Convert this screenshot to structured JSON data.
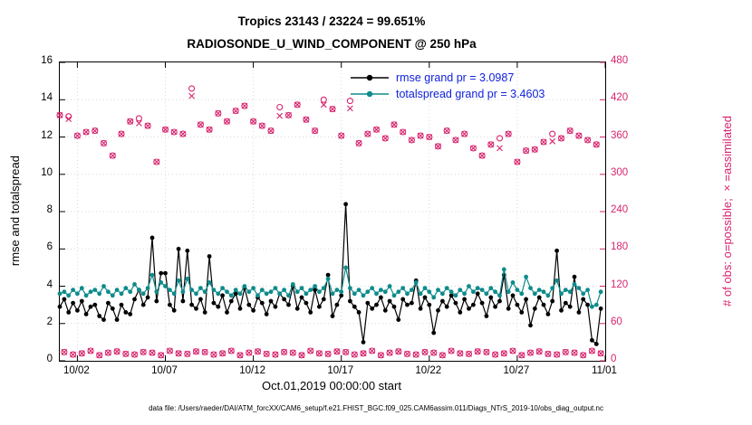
{
  "figure": {
    "title_line1": "Tropics 23143 / 23224 = 99.651%",
    "title_line2": "RADIOSONDE_U_WIND_COMPONENT @ 250 hPa",
    "xlabel": "Oct.01,2019 00:00:00 start",
    "ylabel_left": "rmse and totalspread",
    "ylabel_right": "# of obs: o=possible; ×=assimilated",
    "caption": "data file: /Users/raeder/DAI/ATM_forcXX/CAM6_setup/f.e21.FHIST_BGC.f09_025.CAM6assim.011/Diags_NTrS_2019-10/obs_diag_output.nc",
    "colors": {
      "rmse": "#000000",
      "totalspread": "#0e8b8b",
      "obs": "#d6246e",
      "legend_text": "#1021dd",
      "grid": "#d8d8d8"
    }
  },
  "legend": [
    {
      "series": "rmse",
      "label": "rmse grand pr = 3.0987"
    },
    {
      "series": "totalspread",
      "label": "totalspread grand pr = 3.4603"
    }
  ],
  "chart_data": {
    "type": "line",
    "title": "Tropics 23143 / 23224 = 99.651% | RADIOSONDE_U_WIND_COMPONENT @ 250 hPa",
    "xlabel": "Oct.01,2019 00:00:00 start",
    "x_unit": "days since 2019-10-01 00:00:00",
    "x_start": 0,
    "x_step": 0.25,
    "x_range": [
      0,
      31
    ],
    "x_ticks": [
      {
        "day": 1,
        "label": "10/02"
      },
      {
        "day": 6,
        "label": "10/07"
      },
      {
        "day": 11,
        "label": "10/12"
      },
      {
        "day": 16,
        "label": "10/17"
      },
      {
        "day": 21,
        "label": "10/22"
      },
      {
        "day": 26,
        "label": "10/27"
      },
      {
        "day": 31,
        "label": "11/01"
      }
    ],
    "y_left": {
      "label": "rmse and totalspread",
      "range": [
        0,
        16
      ],
      "ticks": [
        0,
        2,
        4,
        6,
        8,
        10,
        12,
        14,
        16
      ]
    },
    "y_right": {
      "label": "# of obs: o=possible; ×=assimilated",
      "range": [
        0,
        480
      ],
      "ticks": [
        0,
        60,
        120,
        180,
        240,
        300,
        360,
        420,
        480
      ]
    },
    "grid": true,
    "legend_position": "upper-center-right",
    "rmse_grand_avg": 3.0987,
    "totalspread_grand_avg": 3.4603,
    "series": [
      {
        "name": "rmse",
        "axis": "left",
        "marker": "filled-circle",
        "values": [
          2.9,
          3.3,
          2.6,
          3.1,
          2.7,
          3.2,
          2.5,
          2.9,
          3.0,
          2.4,
          2.2,
          3.1,
          2.8,
          2.2,
          3.0,
          2.6,
          2.5,
          3.3,
          3.8,
          3.0,
          3.4,
          6.6,
          3.2,
          4.7,
          4.7,
          3.0,
          2.7,
          6.0,
          3.2,
          5.9,
          3.0,
          2.8,
          3.3,
          2.6,
          5.6,
          3.1,
          2.9,
          3.5,
          2.6,
          3.2,
          3.6,
          2.8,
          3.9,
          3.0,
          2.7,
          3.4,
          3.1,
          2.5,
          3.2,
          2.9,
          3.6,
          3.3,
          3.0,
          4.0,
          2.8,
          3.4,
          3.1,
          2.6,
          3.8,
          2.9,
          3.3,
          4.6,
          2.4,
          3.0,
          3.5,
          8.4,
          3.2,
          2.9,
          2.6,
          1.0,
          3.1,
          2.8,
          3.0,
          3.4,
          2.7,
          3.2,
          2.9,
          2.2,
          3.3,
          3.0,
          3.1,
          4.3,
          2.8,
          3.4,
          3.0,
          1.5,
          2.7,
          3.2,
          2.9,
          3.5,
          3.1,
          2.6,
          3.3,
          2.8,
          3.0,
          3.6,
          3.1,
          2.4,
          3.4,
          2.9,
          3.2,
          4.6,
          2.8,
          3.5,
          3.0,
          2.6,
          3.3,
          1.9,
          2.8,
          3.4,
          3.0,
          2.5,
          3.2,
          5.9,
          2.7,
          3.1,
          2.9,
          4.5,
          2.6,
          3.3,
          3.0,
          1.1,
          0.9,
          2.8
        ]
      },
      {
        "name": "totalspread",
        "axis": "left",
        "marker": "filled-circle",
        "values": [
          3.6,
          3.7,
          3.5,
          3.8,
          3.6,
          3.9,
          3.5,
          3.7,
          3.8,
          3.6,
          4.0,
          3.7,
          3.5,
          3.8,
          3.6,
          3.9,
          3.7,
          4.1,
          3.8,
          3.6,
          3.9,
          4.6,
          3.7,
          4.2,
          4.0,
          3.8,
          3.6,
          4.3,
          3.7,
          4.4,
          3.8,
          3.6,
          3.9,
          3.7,
          4.2,
          3.8,
          3.6,
          3.9,
          3.7,
          3.5,
          3.8,
          3.6,
          4.0,
          3.7,
          3.9,
          3.5,
          3.8,
          3.6,
          3.7,
          3.9,
          3.6,
          3.8,
          3.5,
          4.1,
          3.7,
          3.9,
          3.6,
          3.8,
          4.0,
          3.7,
          3.9,
          4.4,
          3.6,
          3.8,
          3.7,
          5.0,
          3.9,
          3.6,
          3.8,
          3.5,
          3.7,
          3.9,
          3.6,
          3.8,
          3.7,
          4.0,
          3.5,
          3.7,
          3.9,
          3.6,
          3.8,
          4.2,
          3.6,
          3.9,
          3.7,
          3.4,
          3.8,
          3.6,
          3.9,
          3.7,
          3.5,
          3.8,
          3.6,
          4.0,
          3.7,
          3.9,
          3.8,
          3.6,
          3.9,
          3.7,
          3.5,
          4.9,
          3.7,
          4.2,
          3.8,
          3.6,
          4.5,
          3.9,
          3.6,
          3.8,
          3.7,
          3.5,
          3.9,
          4.3,
          3.6,
          3.8,
          3.7,
          4.1,
          3.9,
          3.6,
          3.8,
          2.9,
          3.0,
          3.7
        ]
      },
      {
        "name": "possible",
        "axis": "right",
        "marker": "open-circle",
        "values": [
          395,
          14,
          393,
          10,
          362,
          12,
          368,
          16,
          370,
          9,
          350,
          13,
          330,
          15,
          365,
          11,
          385,
          10,
          390,
          14,
          378,
          13,
          320,
          9,
          372,
          16,
          368,
          12,
          365,
          11,
          438,
          15,
          380,
          14,
          372,
          10,
          398,
          12,
          385,
          16,
          402,
          9,
          410,
          13,
          385,
          15,
          378,
          11,
          370,
          10,
          408,
          14,
          395,
          13,
          412,
          9,
          388,
          16,
          370,
          12,
          420,
          11,
          405,
          15,
          362,
          14,
          418,
          10,
          350,
          12,
          365,
          16,
          372,
          9,
          358,
          13,
          380,
          15,
          368,
          11,
          355,
          10,
          362,
          14,
          360,
          13,
          345,
          9,
          370,
          16,
          355,
          12,
          365,
          11,
          342,
          15,
          330,
          14,
          348,
          10,
          358,
          12,
          365,
          16,
          320,
          9,
          338,
          13,
          340,
          15,
          352,
          11,
          365,
          10,
          358,
          14,
          370,
          13,
          362,
          9,
          355,
          16,
          348,
          12
        ]
      },
      {
        "name": "assimilated",
        "axis": "right",
        "marker": "x-cross",
        "values": [
          395,
          14,
          389,
          10,
          362,
          12,
          368,
          16,
          370,
          9,
          350,
          13,
          330,
          15,
          365,
          11,
          385,
          10,
          382,
          14,
          378,
          13,
          320,
          9,
          372,
          16,
          368,
          12,
          365,
          11,
          426,
          15,
          380,
          14,
          372,
          10,
          398,
          12,
          385,
          16,
          402,
          9,
          410,
          13,
          385,
          15,
          378,
          11,
          370,
          10,
          394,
          14,
          395,
          13,
          412,
          9,
          388,
          16,
          370,
          12,
          412,
          11,
          405,
          15,
          362,
          14,
          406,
          10,
          350,
          12,
          365,
          16,
          372,
          9,
          358,
          13,
          380,
          15,
          368,
          11,
          355,
          10,
          362,
          14,
          360,
          13,
          345,
          9,
          370,
          16,
          355,
          12,
          365,
          11,
          342,
          15,
          330,
          14,
          348,
          10,
          342,
          12,
          365,
          16,
          320,
          9,
          338,
          13,
          340,
          15,
          352,
          11,
          353,
          10,
          358,
          14,
          370,
          13,
          362,
          9,
          355,
          16,
          348,
          12
        ]
      }
    ]
  }
}
